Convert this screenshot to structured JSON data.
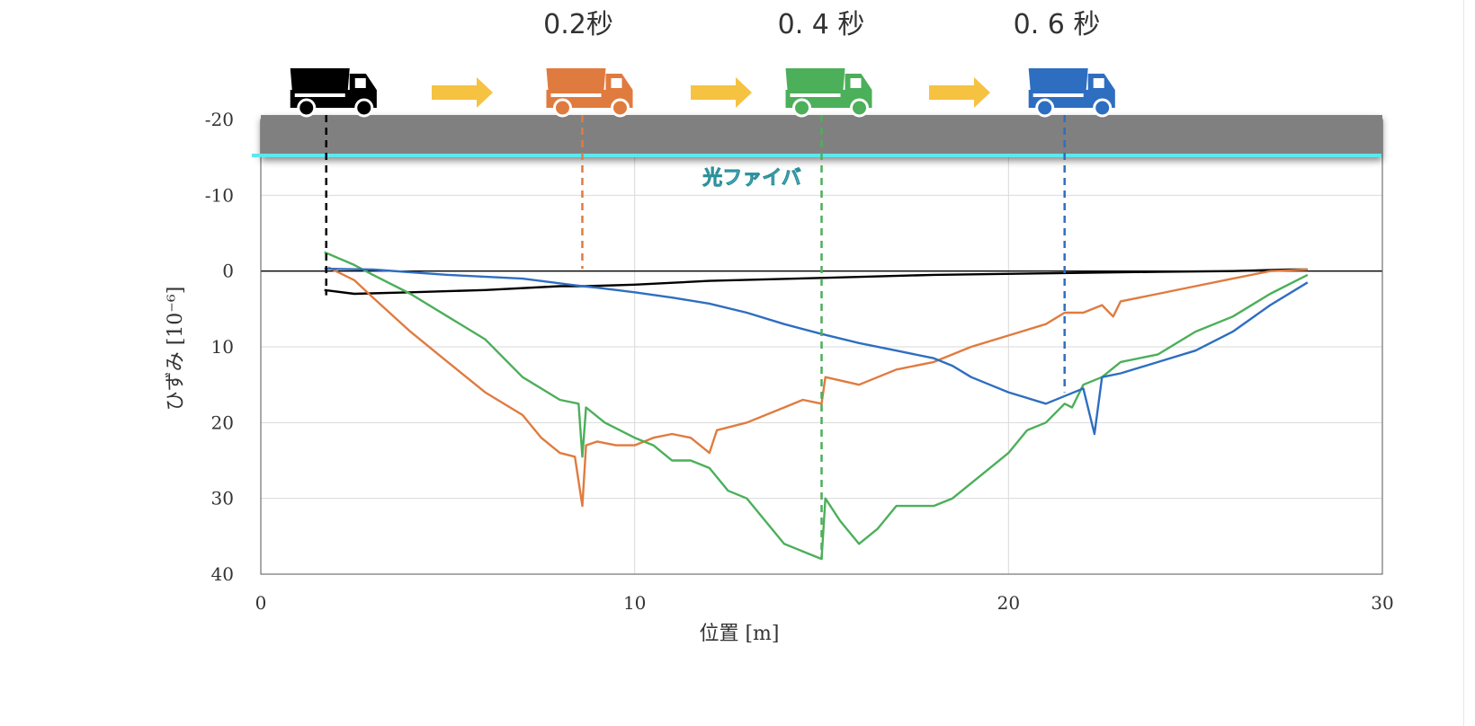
{
  "chart_data": {
    "type": "line",
    "xlabel": "位置 [m]",
    "ylabel": "ひずみ [10⁻⁶]",
    "xlim": [
      0,
      30
    ],
    "ylim": [
      -20,
      40
    ],
    "y_inverted": true,
    "x_ticks": [
      "0",
      "10",
      "20",
      "30"
    ],
    "y_ticks": [
      "-20",
      "-10",
      "0",
      "10",
      "20",
      "30",
      "40"
    ],
    "grid": true,
    "time_labels": [
      "0.2秒",
      "0. 4 秒",
      "0. 6 秒"
    ],
    "fiber_label": "光ファイバ",
    "road_color": "#808080",
    "fiber_color": "#5ce8f0",
    "arrow_color": "#f5c242",
    "trucks": [
      {
        "x": 1.75,
        "color": "#000000"
      },
      {
        "x": 8.6,
        "color": "#e07b3f"
      },
      {
        "x": 15.0,
        "color": "#4caf5a"
      },
      {
        "x": 21.5,
        "color": "#2e6ec0"
      }
    ],
    "series": [
      {
        "color": "#000000",
        "points": [
          [
            1.7,
            2.5
          ],
          [
            2.5,
            3.0
          ],
          [
            4,
            2.8
          ],
          [
            6,
            2.5
          ],
          [
            8,
            2.0
          ],
          [
            8.7,
            2.0
          ],
          [
            10,
            1.8
          ],
          [
            12,
            1.3
          ],
          [
            15,
            0.9
          ],
          [
            18,
            0.5
          ],
          [
            21,
            0.3
          ],
          [
            24,
            0.1
          ],
          [
            26,
            0.0
          ],
          [
            27.5,
            -0.2
          ],
          [
            28,
            -0.2
          ]
        ]
      },
      {
        "color": "#e07b3f",
        "points": [
          [
            1.8,
            -0.5
          ],
          [
            2.5,
            1.2
          ],
          [
            3,
            3.5
          ],
          [
            4,
            8
          ],
          [
            5,
            12
          ],
          [
            6,
            16
          ],
          [
            7,
            19
          ],
          [
            7.5,
            22
          ],
          [
            8,
            24
          ],
          [
            8.4,
            24.5
          ],
          [
            8.6,
            31
          ],
          [
            8.7,
            23
          ],
          [
            9,
            22.5
          ],
          [
            9.5,
            23
          ],
          [
            10,
            23
          ],
          [
            10.5,
            22
          ],
          [
            11,
            21.5
          ],
          [
            11.5,
            22
          ],
          [
            12,
            24
          ],
          [
            12.2,
            21
          ],
          [
            13,
            20
          ],
          [
            14,
            18
          ],
          [
            14.5,
            17
          ],
          [
            15,
            17.5
          ],
          [
            15.1,
            14
          ],
          [
            16,
            15
          ],
          [
            17,
            13
          ],
          [
            18,
            12
          ],
          [
            19,
            10
          ],
          [
            20,
            8.5
          ],
          [
            21,
            7
          ],
          [
            21.5,
            5.5
          ],
          [
            22,
            5.5
          ],
          [
            22.5,
            4.5
          ],
          [
            22.8,
            6
          ],
          [
            23,
            4
          ],
          [
            24,
            3
          ],
          [
            25,
            2
          ],
          [
            26,
            1
          ],
          [
            27,
            0
          ],
          [
            28,
            -0.2
          ]
        ]
      },
      {
        "color": "#4caf5a",
        "points": [
          [
            1.7,
            -2.5
          ],
          [
            2.5,
            -0.8
          ],
          [
            3,
            0.5
          ],
          [
            4,
            3
          ],
          [
            5,
            6
          ],
          [
            6,
            9
          ],
          [
            7,
            14
          ],
          [
            8,
            17
          ],
          [
            8.5,
            17.5
          ],
          [
            8.6,
            24.5
          ],
          [
            8.7,
            18
          ],
          [
            9.2,
            20
          ],
          [
            10,
            22
          ],
          [
            10.5,
            23
          ],
          [
            11,
            25
          ],
          [
            11.5,
            25
          ],
          [
            12,
            26
          ],
          [
            12.5,
            29
          ],
          [
            13,
            30
          ],
          [
            13.5,
            33
          ],
          [
            14,
            36
          ],
          [
            14.5,
            37
          ],
          [
            15,
            38
          ],
          [
            15.1,
            30
          ],
          [
            15.5,
            33
          ],
          [
            16,
            36
          ],
          [
            16.5,
            34
          ],
          [
            17,
            31
          ],
          [
            17.5,
            31
          ],
          [
            18,
            31
          ],
          [
            18.5,
            30
          ],
          [
            19,
            28
          ],
          [
            19.5,
            26
          ],
          [
            20,
            24
          ],
          [
            20.5,
            21
          ],
          [
            21,
            20
          ],
          [
            21.5,
            17.5
          ],
          [
            21.7,
            18
          ],
          [
            22,
            15
          ],
          [
            22.5,
            14
          ],
          [
            23,
            12
          ],
          [
            24,
            11
          ],
          [
            25,
            8
          ],
          [
            26,
            6
          ],
          [
            27,
            3
          ],
          [
            28,
            0.5
          ]
        ]
      },
      {
        "color": "#2e6ec0",
        "points": [
          [
            1.7,
            -0.3
          ],
          [
            3,
            -0.2
          ],
          [
            5,
            0.5
          ],
          [
            7,
            1.0
          ],
          [
            8.6,
            2.0
          ],
          [
            9,
            2.2
          ],
          [
            10,
            2.8
          ],
          [
            11,
            3.5
          ],
          [
            12,
            4.3
          ],
          [
            13,
            5.5
          ],
          [
            14,
            7
          ],
          [
            15,
            8.3
          ],
          [
            16,
            9.5
          ],
          [
            17,
            10.5
          ],
          [
            18,
            11.5
          ],
          [
            18.5,
            12.5
          ],
          [
            19,
            14
          ],
          [
            19.5,
            15
          ],
          [
            20,
            16
          ],
          [
            21,
            17.5
          ],
          [
            21.5,
            16.5
          ],
          [
            22,
            15.5
          ],
          [
            22.3,
            21.5
          ],
          [
            22.5,
            14
          ],
          [
            23,
            13.5
          ],
          [
            24,
            12
          ],
          [
            25,
            10.5
          ],
          [
            26,
            8
          ],
          [
            27,
            4.5
          ],
          [
            28,
            1.5
          ]
        ]
      }
    ]
  }
}
